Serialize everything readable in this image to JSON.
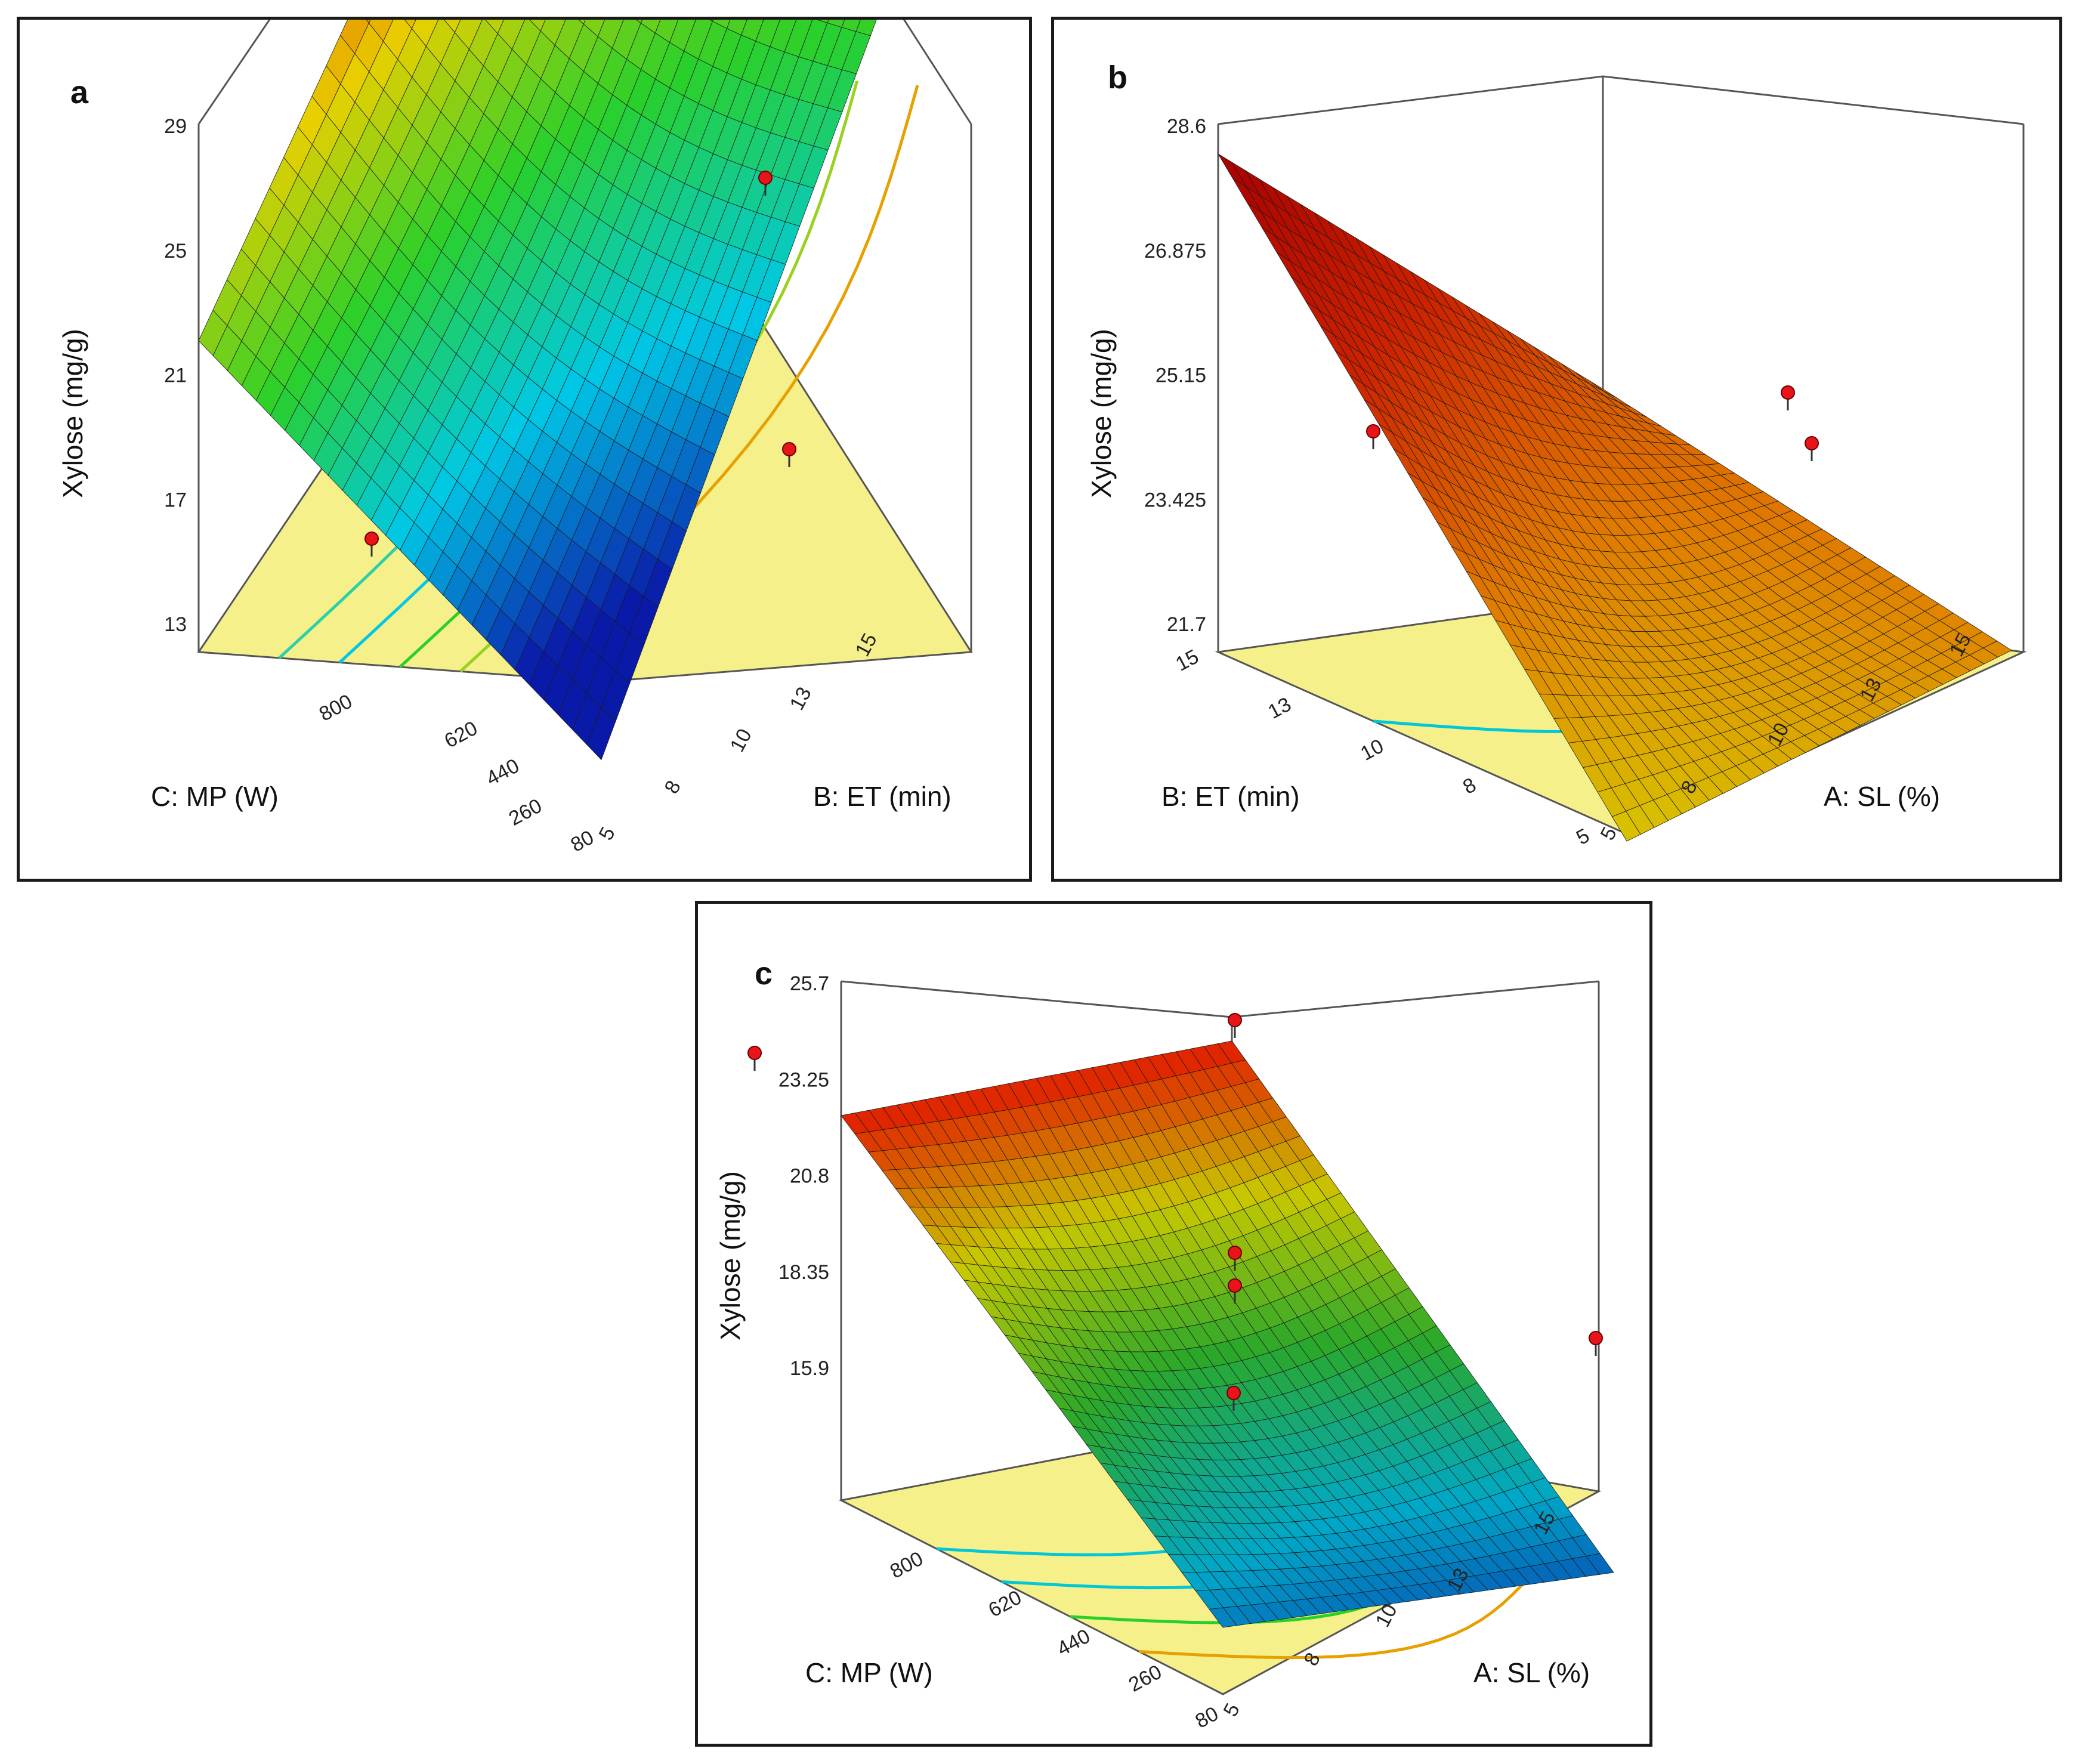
{
  "chart_data": [
    {
      "type": "surface",
      "panel_label": "a",
      "zlabel": "Xylose (mg/g)",
      "z_ticks": [
        "13",
        "17",
        "21",
        "25",
        "29"
      ],
      "zlim": [
        13,
        29
      ],
      "x_axis": {
        "label": "B: ET (min)",
        "ticks": [
          "5",
          "8",
          "10",
          "13",
          "15"
        ]
      },
      "y_axis": {
        "label": "C: MP (W)",
        "ticks": [
          "80",
          "260",
          "440",
          "620",
          "800"
        ]
      },
      "surface_corners": {
        "front": 10.5,
        "right": 25.8,
        "back": 31.5,
        "left": 23.0
      },
      "design_points": [
        {
          "label": "pt1",
          "z": 13.4
        },
        {
          "label": "pt2",
          "z": 28.7
        },
        {
          "label": "pt3",
          "z": 18.4
        }
      ],
      "colormap": [
        "#0a1aa8",
        "#00c8e6",
        "#2ad02a",
        "#e8d000",
        "#e21a00"
      ]
    },
    {
      "type": "surface",
      "panel_label": "b",
      "zlabel": "Xylose (mg/g)",
      "z_ticks": [
        "21.7",
        "23.425",
        "25.15",
        "26.875",
        "28.6"
      ],
      "zlim": [
        21.7,
        28.6
      ],
      "x_axis": {
        "label": "A: SL (%)",
        "ticks": [
          "5",
          "8",
          "10",
          "13",
          "15"
        ]
      },
      "y_axis": {
        "label": "B: ET (min)",
        "ticks": [
          "5",
          "8",
          "10",
          "13",
          "15"
        ]
      },
      "surface_corners": {
        "front": 21.6,
        "right": 23.5,
        "back": 24.6,
        "left": 28.6
      },
      "design_points": [
        {
          "label": "pt1",
          "z": 24.2
        },
        {
          "label": "pt2",
          "z": 23.7
        },
        {
          "label": "pt3",
          "z": 23.3
        }
      ],
      "colormap": [
        "#d8c200",
        "#e07a00",
        "#cc2200",
        "#a80000"
      ]
    },
    {
      "type": "surface",
      "panel_label": "c",
      "zlabel": "Xylose (mg/g)",
      "z_ticks": [
        "15.9",
        "18.35",
        "20.8",
        "23.25",
        "25.7"
      ],
      "zlim": [
        15.9,
        25.7
      ],
      "x_axis": {
        "label": "A: SL (%)",
        "ticks": [
          "5",
          "8",
          "10",
          "13",
          "15"
        ]
      },
      "y_axis": {
        "label": "C: MP (W)",
        "ticks": [
          "80",
          "260",
          "440",
          "620",
          "800"
        ]
      },
      "surface_corners": {
        "front": 17.6,
        "right": 17.1,
        "back": 25.7,
        "left": 25.7
      },
      "design_points": [
        {
          "label": "pt1",
          "z": 25.1
        },
        {
          "label": "pt2",
          "z": 25.3
        },
        {
          "label": "pt3",
          "z": 20.6
        },
        {
          "label": "pt4",
          "z": 20.1
        },
        {
          "label": "pt5",
          "z": 19.0
        },
        {
          "label": "pt6",
          "z": 15.9
        }
      ],
      "colormap": [
        "#0a1aa8",
        "#00a8c8",
        "#2aa82a",
        "#c8c800",
        "#e21a00"
      ]
    }
  ]
}
